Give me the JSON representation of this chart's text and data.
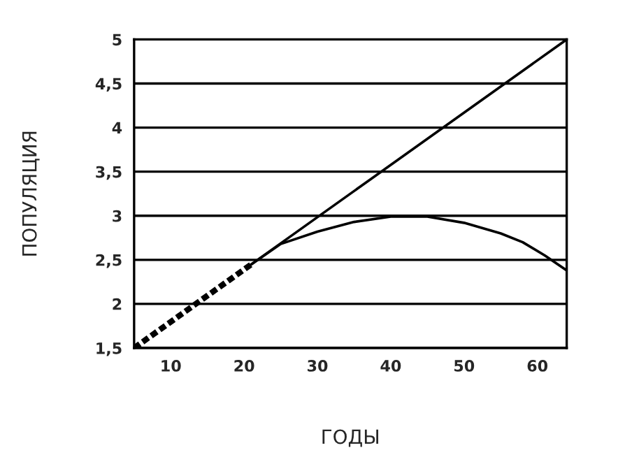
{
  "chart_data": {
    "type": "line",
    "xlabel": "ГОДЫ",
    "ylabel": "ПОПУЛЯЦИЯ",
    "series": [
      {
        "color": "#000000",
        "line_style": "dashed",
        "x": [
          5,
          21
        ],
        "values": [
          1.5,
          2.45
        ]
      },
      {
        "color": "#000000",
        "line_style": "solid",
        "x": [
          21,
          64
        ],
        "values": [
          2.45,
          5
        ]
      },
      {
        "color": "#000000",
        "line_style": "solid",
        "x": [
          21,
          25,
          30,
          35,
          40,
          45,
          50,
          55,
          58,
          61,
          64
        ],
        "values": [
          2.45,
          2.68,
          2.82,
          2.93,
          2.99,
          2.99,
          2.92,
          2.8,
          2.7,
          2.55,
          2.38
        ]
      }
    ],
    "xlim": [
      5,
      64
    ],
    "xticks": [
      10,
      20,
      30,
      40,
      50,
      60
    ],
    "ylim": [
      1.5,
      5
    ],
    "yticks": [
      {
        "value": 1.5,
        "label": "1,5"
      },
      2,
      {
        "value": 2.5,
        "label": "2,5"
      },
      3,
      {
        "value": 3.5,
        "label": "3,5"
      },
      4,
      {
        "value": 4.5,
        "label": "4,5"
      },
      5
    ],
    "grid": "y",
    "legend": false,
    "marker": "none"
  }
}
